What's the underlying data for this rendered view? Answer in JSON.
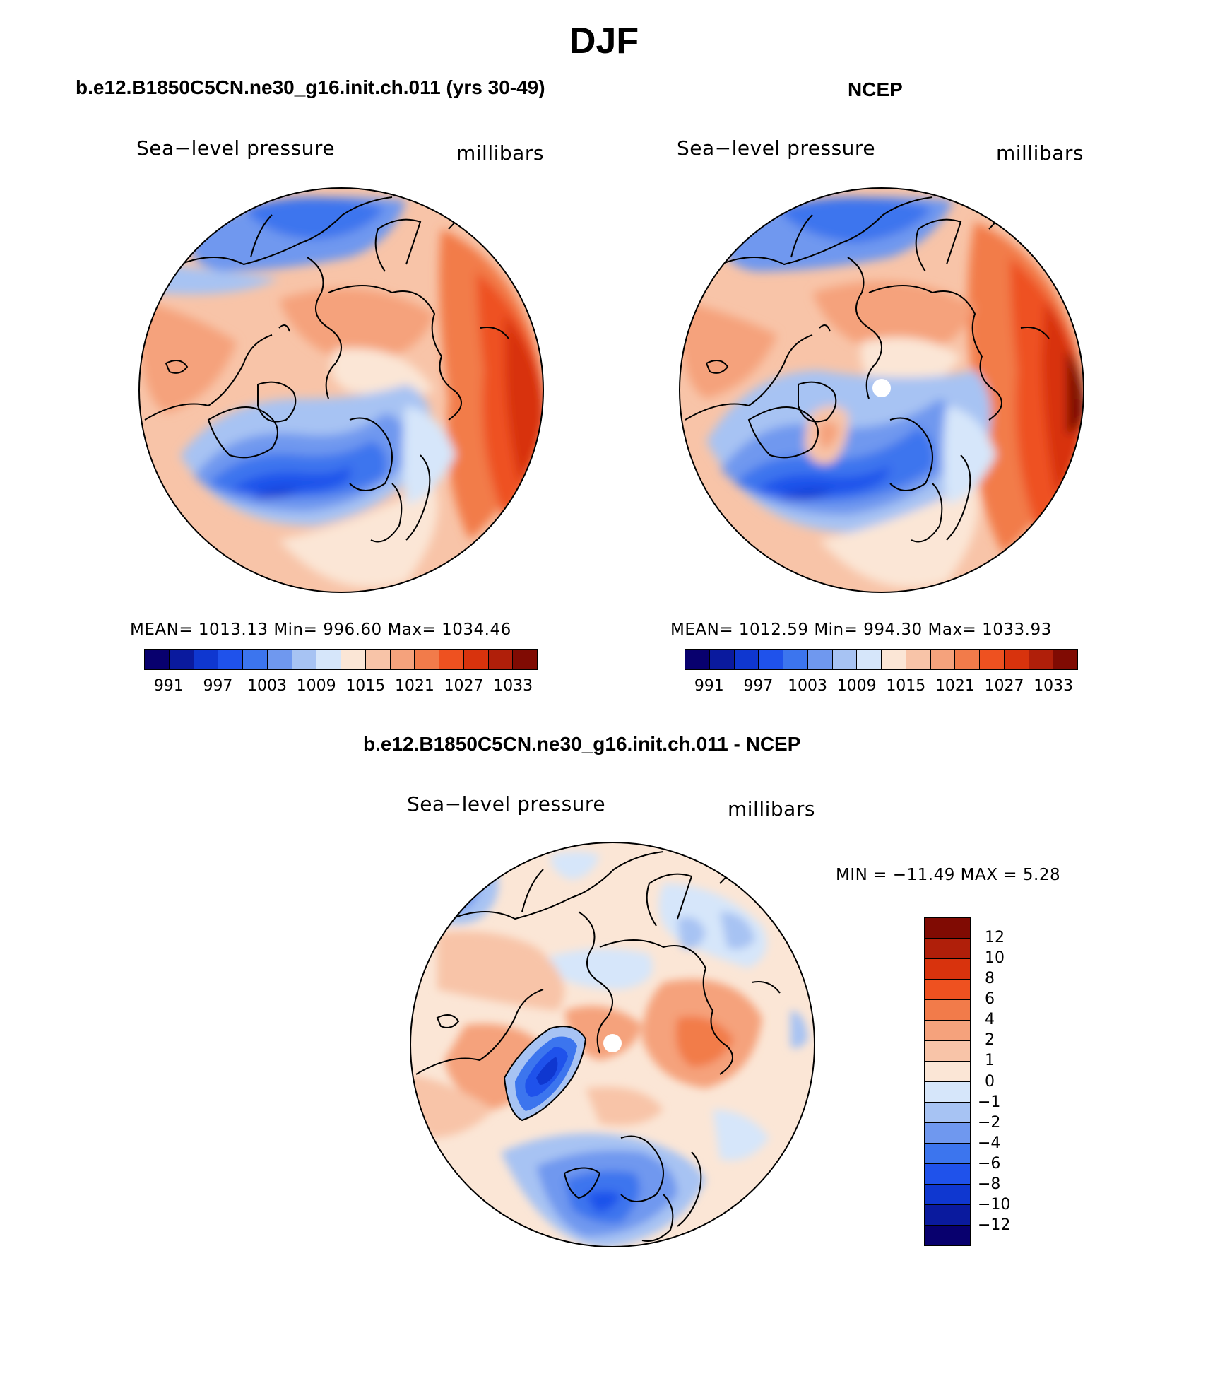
{
  "title": "DJF",
  "palette_abs": [
    "#08006e",
    "#0a1a9e",
    "#0f37d0",
    "#1f52eb",
    "#3c75ee",
    "#6f98ef",
    "#a7c3f3",
    "#d6e6fa",
    "#fbe6d6",
    "#f8c4a8",
    "#f5a27c",
    "#f27b4a",
    "#ee5120",
    "#d8330d",
    "#b01f0a",
    "#800b03"
  ],
  "palette_diff": [
    "#800b03",
    "#b01f0a",
    "#d8330d",
    "#ee5120",
    "#f27b4a",
    "#f5a27c",
    "#f8c4a8",
    "#fbe6d6",
    "#d6e6fa",
    "#a7c3f3",
    "#6f98ef",
    "#3c75ee",
    "#1f52eb",
    "#0f37d0",
    "#0a1a9e",
    "#08006e"
  ],
  "panel_left": {
    "title": "b.e12.B1850C5CN.ne30_g16.init.ch.011 (yrs 30-49)",
    "variable": "Sea−level pressure",
    "units": "millibars",
    "stats": "MEAN=  1013.13    Min=  996.60    Max=  1034.46",
    "ticks": [
      "991",
      "997",
      "1003",
      "1009",
      "1015",
      "1021",
      "1027",
      "1033"
    ]
  },
  "panel_right": {
    "title": "NCEP",
    "variable": "Sea−level pressure",
    "units": "millibars",
    "stats": "MEAN=  1012.59    Min=  994.30    Max=  1033.93",
    "ticks": [
      "991",
      "997",
      "1003",
      "1009",
      "1015",
      "1021",
      "1027",
      "1033"
    ]
  },
  "panel_diff": {
    "title": "b.e12.B1850C5CN.ne30_g16.init.ch.011 - NCEP",
    "variable": "Sea−level pressure",
    "units": "millibars",
    "stats": "MIN = −11.49  MAX =      5.28",
    "ticks": [
      "12",
      "10",
      "8",
      "6",
      "4",
      "2",
      "1",
      "0",
      "−1",
      "−2",
      "−4",
      "−6",
      "−8",
      "−10",
      "−12"
    ]
  }
}
